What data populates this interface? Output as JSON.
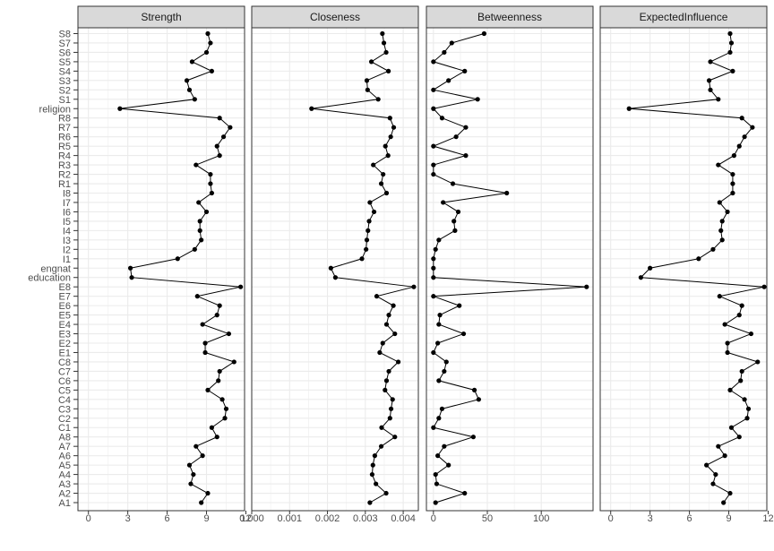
{
  "chart_data": {
    "type": "line",
    "categories": [
      "A1",
      "A2",
      "A3",
      "A4",
      "A5",
      "A6",
      "A7",
      "A8",
      "C1",
      "C2",
      "C3",
      "C4",
      "C5",
      "C6",
      "C7",
      "C8",
      "E1",
      "E2",
      "E3",
      "E4",
      "E5",
      "E6",
      "E7",
      "E8",
      "education",
      "engnat",
      "I1",
      "I2",
      "I3",
      "I4",
      "I5",
      "I6",
      "I7",
      "I8",
      "R1",
      "R2",
      "R3",
      "R4",
      "R5",
      "R6",
      "R7",
      "R8",
      "religion",
      "S1",
      "S2",
      "S3",
      "S4",
      "S5",
      "S6",
      "S7",
      "S8"
    ],
    "grid": true,
    "panels": [
      {
        "name": "Strength",
        "xlim": [
          -0.8,
          11.9
        ],
        "ticks": [
          0,
          3,
          6,
          9,
          12
        ],
        "tick_labels": [
          "0",
          "3",
          "6",
          "9",
          "12"
        ],
        "values": [
          8.6,
          9.1,
          7.8,
          8.0,
          7.7,
          8.7,
          8.2,
          9.8,
          9.4,
          10.4,
          10.5,
          10.2,
          9.1,
          9.9,
          10.0,
          11.1,
          8.9,
          8.9,
          10.7,
          8.7,
          9.8,
          10.0,
          8.3,
          11.6,
          3.3,
          3.2,
          6.8,
          8.1,
          8.6,
          8.5,
          8.5,
          9.0,
          8.4,
          9.4,
          9.3,
          9.3,
          8.2,
          10.0,
          9.8,
          10.3,
          10.8,
          10.0,
          2.4,
          8.1,
          7.7,
          7.5,
          9.4,
          7.9,
          9.0,
          9.3,
          9.1
        ]
      },
      {
        "name": "Closeness",
        "xlim": [
          0,
          0.0044
        ],
        "ticks": [
          0,
          0.001,
          0.002,
          0.003,
          0.004
        ],
        "tick_labels": [
          "0.000",
          "0.001",
          "0.002",
          "0.003",
          "0.004"
        ],
        "values": [
          0.00312,
          0.00355,
          0.00328,
          0.00318,
          0.0032,
          0.00325,
          0.00342,
          0.00378,
          0.00343,
          0.00365,
          0.00368,
          0.00372,
          0.00352,
          0.00356,
          0.00362,
          0.00387,
          0.00338,
          0.00346,
          0.00378,
          0.00356,
          0.00362,
          0.00374,
          0.0033,
          0.00428,
          0.00221,
          0.00209,
          0.00291,
          0.00302,
          0.00304,
          0.00307,
          0.0031,
          0.00323,
          0.00312,
          0.00356,
          0.00342,
          0.00347,
          0.00321,
          0.0036,
          0.00353,
          0.00367,
          0.00375,
          0.00365,
          0.00158,
          0.00334,
          0.00306,
          0.00304,
          0.00361,
          0.00316,
          0.00355,
          0.00349,
          0.00345
        ]
      },
      {
        "name": "Betweenness",
        "xlim": [
          -6.5,
          148
        ],
        "ticks": [
          0,
          50,
          100
        ],
        "tick_labels": [
          "0",
          "50",
          "100"
        ],
        "values": [
          2,
          29,
          3,
          2,
          14,
          4,
          10,
          37,
          0,
          5,
          8,
          42,
          38,
          5,
          10,
          12,
          0,
          4,
          28,
          5,
          6,
          24,
          0,
          142,
          0,
          0,
          0,
          2,
          5,
          20,
          19,
          23,
          9,
          68,
          18,
          0,
          0,
          30,
          0,
          21,
          30,
          8,
          0,
          41,
          0,
          14,
          29,
          0,
          10,
          17,
          47
        ]
      },
      {
        "name": "ExpectedInfluence",
        "xlim": [
          -0.8,
          11.9
        ],
        "ticks": [
          0,
          3,
          6,
          9,
          12
        ],
        "tick_labels": [
          "0",
          "3",
          "6",
          "9",
          "12"
        ],
        "values": [
          8.6,
          9.1,
          7.8,
          8.0,
          7.3,
          8.7,
          8.2,
          9.8,
          9.2,
          10.4,
          10.5,
          10.2,
          9.1,
          9.9,
          10.0,
          11.2,
          8.9,
          8.9,
          10.7,
          8.7,
          9.8,
          10.0,
          8.3,
          11.7,
          2.3,
          3.0,
          6.7,
          7.8,
          8.5,
          8.4,
          8.5,
          8.9,
          8.3,
          9.3,
          9.3,
          9.3,
          8.2,
          9.4,
          9.8,
          10.2,
          10.8,
          10.0,
          1.4,
          8.2,
          7.6,
          7.5,
          9.3,
          7.6,
          9.1,
          9.2,
          9.1
        ]
      }
    ]
  }
}
